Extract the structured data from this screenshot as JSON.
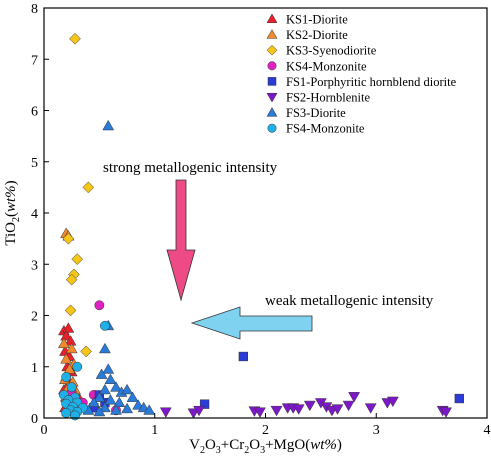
{
  "chart_data": {
    "type": "scatter",
    "xlabel_parts": [
      "V",
      "2",
      "O",
      "3",
      "+Cr",
      "2",
      "O",
      "3",
      "+MgO(",
      "wt%",
      ")"
    ],
    "ylabel_parts": [
      "TiO",
      "2",
      "(",
      "wt%",
      ")"
    ],
    "xlim": [
      0,
      4
    ],
    "ylim": [
      0,
      8
    ],
    "xticks": [
      0,
      1,
      2,
      3,
      4
    ],
    "yticks": [
      0,
      1,
      2,
      3,
      4,
      5,
      6,
      7,
      8
    ],
    "grid": false,
    "legend_position": "top-right",
    "annotations": [
      {
        "text": "strong metallogenic intensity",
        "arrow": "down",
        "arrow_color": "#ee4a86"
      },
      {
        "text": "weak metallogenic intensity",
        "arrow": "left",
        "arrow_color": "#7fd3f0"
      }
    ],
    "series": [
      {
        "name": "KS1-Diorite",
        "marker": "triangle-up",
        "color": "#e8202a",
        "points": [
          [
            0.18,
            1.7
          ],
          [
            0.22,
            1.75
          ],
          [
            0.2,
            1.6
          ],
          [
            0.24,
            1.5
          ],
          [
            0.19,
            1.3
          ],
          [
            0.23,
            1.2
          ],
          [
            0.21,
            1.0
          ],
          [
            0.25,
            0.9
          ],
          [
            0.2,
            0.8
          ],
          [
            0.22,
            0.65
          ],
          [
            0.18,
            0.55
          ],
          [
            0.24,
            0.5
          ],
          [
            0.2,
            0.4
          ],
          [
            0.26,
            0.35
          ],
          [
            0.22,
            0.3
          ],
          [
            0.28,
            0.25
          ],
          [
            0.19,
            0.2
          ],
          [
            0.3,
            0.45
          ],
          [
            0.25,
            0.15
          ]
        ]
      },
      {
        "name": "KS2-Diorite",
        "marker": "triangle-up",
        "color": "#f08a2c",
        "points": [
          [
            0.2,
            3.6
          ],
          [
            0.22,
            3.55
          ],
          [
            0.18,
            1.45
          ],
          [
            0.25,
            1.35
          ],
          [
            0.2,
            1.15
          ],
          [
            0.27,
            1.05
          ],
          [
            0.23,
            0.95
          ],
          [
            0.19,
            0.75
          ],
          [
            0.26,
            0.7
          ],
          [
            0.22,
            0.6
          ],
          [
            0.28,
            0.55
          ],
          [
            0.2,
            0.42
          ],
          [
            0.3,
            0.3
          ],
          [
            0.24,
            0.25
          ],
          [
            0.32,
            0.2
          ],
          [
            0.21,
            0.12
          ]
        ]
      },
      {
        "name": "KS3-Syenodiorite",
        "marker": "diamond",
        "color": "#f5c518",
        "points": [
          [
            0.28,
            7.4
          ],
          [
            0.4,
            4.5
          ],
          [
            0.22,
            3.5
          ],
          [
            0.3,
            3.1
          ],
          [
            0.27,
            2.8
          ],
          [
            0.25,
            2.7
          ],
          [
            0.24,
            2.1
          ],
          [
            0.38,
            1.3
          ],
          [
            0.26,
            0.4
          ],
          [
            0.34,
            0.3
          ],
          [
            0.3,
            0.2
          ]
        ]
      },
      {
        "name": "KS4-Monzonite",
        "marker": "circle",
        "color": "#e020c0",
        "points": [
          [
            0.5,
            2.2
          ],
          [
            0.25,
            0.5
          ],
          [
            0.45,
            0.45
          ],
          [
            0.35,
            0.3
          ],
          [
            0.65,
            0.15
          ],
          [
            0.3,
            0.2
          ]
        ]
      },
      {
        "name": "FS1-Porphyritic hornblend diorite",
        "marker": "square",
        "color": "#2c3ad8",
        "points": [
          [
            1.8,
            1.2
          ],
          [
            3.75,
            0.38
          ],
          [
            1.45,
            0.27
          ],
          [
            0.5,
            0.45
          ],
          [
            0.55,
            0.3
          ],
          [
            0.45,
            0.2
          ]
        ]
      },
      {
        "name": "FS2-Hornblenite",
        "marker": "triangle-down",
        "color": "#7d18c8",
        "points": [
          [
            1.1,
            0.12
          ],
          [
            1.35,
            0.1
          ],
          [
            1.4,
            0.15
          ],
          [
            1.9,
            0.14
          ],
          [
            1.95,
            0.12
          ],
          [
            2.1,
            0.15
          ],
          [
            2.2,
            0.2
          ],
          [
            2.25,
            0.2
          ],
          [
            2.3,
            0.18
          ],
          [
            2.4,
            0.25
          ],
          [
            2.5,
            0.3
          ],
          [
            2.55,
            0.22
          ],
          [
            2.6,
            0.15
          ],
          [
            2.65,
            0.18
          ],
          [
            2.75,
            0.25
          ],
          [
            2.8,
            0.42
          ],
          [
            2.95,
            0.2
          ],
          [
            3.1,
            0.3
          ],
          [
            3.15,
            0.33
          ],
          [
            3.6,
            0.15
          ],
          [
            3.63,
            0.12
          ]
        ]
      },
      {
        "name": "FS3-Diorite",
        "marker": "triangle-up",
        "color": "#2a7ad8",
        "points": [
          [
            0.58,
            5.7
          ],
          [
            0.58,
            1.8
          ],
          [
            0.55,
            1.35
          ],
          [
            0.58,
            0.95
          ],
          [
            0.52,
            0.85
          ],
          [
            0.6,
            0.75
          ],
          [
            0.65,
            0.6
          ],
          [
            0.55,
            0.55
          ],
          [
            0.7,
            0.5
          ],
          [
            0.75,
            0.55
          ],
          [
            0.5,
            0.4
          ],
          [
            0.6,
            0.35
          ],
          [
            0.68,
            0.3
          ],
          [
            0.8,
            0.4
          ],
          [
            0.85,
            0.25
          ],
          [
            0.45,
            0.3
          ],
          [
            0.55,
            0.2
          ],
          [
            0.65,
            0.15
          ],
          [
            0.75,
            0.18
          ],
          [
            0.9,
            0.2
          ],
          [
            0.95,
            0.15
          ],
          [
            0.4,
            0.15
          ],
          [
            0.5,
            0.12
          ]
        ]
      },
      {
        "name": "FS4-Monzonite",
        "marker": "circle",
        "color": "#20b0e8",
        "points": [
          [
            0.55,
            1.8
          ],
          [
            0.3,
            1.0
          ],
          [
            0.2,
            0.8
          ],
          [
            0.25,
            0.6
          ],
          [
            0.18,
            0.45
          ],
          [
            0.28,
            0.4
          ],
          [
            0.22,
            0.35
          ],
          [
            0.3,
            0.3
          ],
          [
            0.2,
            0.28
          ],
          [
            0.26,
            0.22
          ],
          [
            0.35,
            0.2
          ],
          [
            0.24,
            0.15
          ],
          [
            0.3,
            0.12
          ],
          [
            0.2,
            0.1
          ],
          [
            0.28,
            0.05
          ]
        ]
      }
    ]
  }
}
